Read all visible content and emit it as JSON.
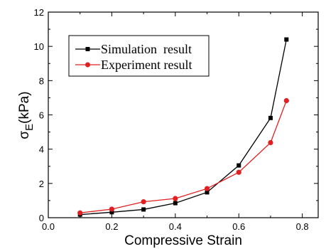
{
  "chart_data": {
    "type": "line",
    "xlabel": "Compressive Strain",
    "ylabel_main": "σ",
    "ylabel_sub": "E",
    "ylabel_unit": "(kPa)",
    "xlim": [
      0.0,
      0.85
    ],
    "ylim": [
      0,
      12
    ],
    "xticks": [
      0.0,
      0.2,
      0.4,
      0.6,
      0.8
    ],
    "xtick_labels": [
      "0.0",
      "0.2",
      "0.4",
      "0.6",
      "0.8"
    ],
    "yticks": [
      0,
      2,
      4,
      6,
      8,
      10,
      12
    ],
    "ytick_labels": [
      "0",
      "2",
      "4",
      "6",
      "8",
      "10",
      "12"
    ],
    "grid": false,
    "legend_position": "top-left",
    "series": [
      {
        "name": "Simulation  result",
        "color": "#000000",
        "marker": "square",
        "x": [
          0.1,
          0.2,
          0.3,
          0.4,
          0.5,
          0.6,
          0.7,
          0.75
        ],
        "y": [
          0.18,
          0.32,
          0.48,
          0.85,
          1.48,
          3.05,
          5.82,
          10.4
        ]
      },
      {
        "name": "Experiment result",
        "color": "#e02020",
        "marker": "circle",
        "x": [
          0.1,
          0.2,
          0.3,
          0.4,
          0.5,
          0.6,
          0.7,
          0.75
        ],
        "y": [
          0.28,
          0.5,
          0.93,
          1.12,
          1.7,
          2.65,
          4.38,
          6.83
        ]
      }
    ]
  }
}
